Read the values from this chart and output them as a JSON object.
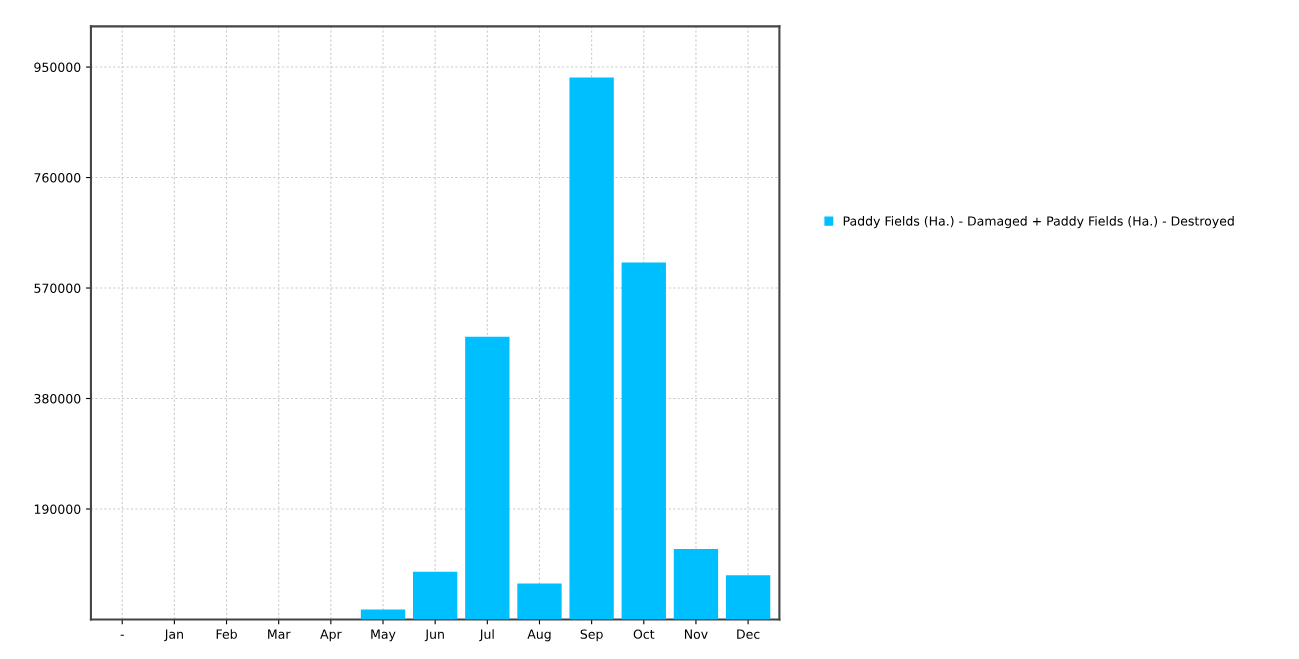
{
  "chart_data": {
    "type": "bar",
    "categories": [
      "-",
      "Jan",
      "Feb",
      "Mar",
      "Apr",
      "May",
      "Jun",
      "Jul",
      "Aug",
      "Sep",
      "Oct",
      "Nov",
      "Dec"
    ],
    "series": [
      {
        "name": "Paddy Fields (Ha.) - Damaged + Paddy Fields (Ha.) - Destroyed",
        "color": "#00bfff",
        "values": [
          0,
          0,
          0,
          0,
          0,
          17000,
          82000,
          486000,
          62000,
          932000,
          614000,
          121000,
          76000
        ]
      }
    ],
    "ylim": [
      0,
      1020000
    ],
    "yticks": [
      190000,
      380000,
      570000,
      760000,
      950000
    ],
    "grid": true,
    "legend": "right"
  }
}
